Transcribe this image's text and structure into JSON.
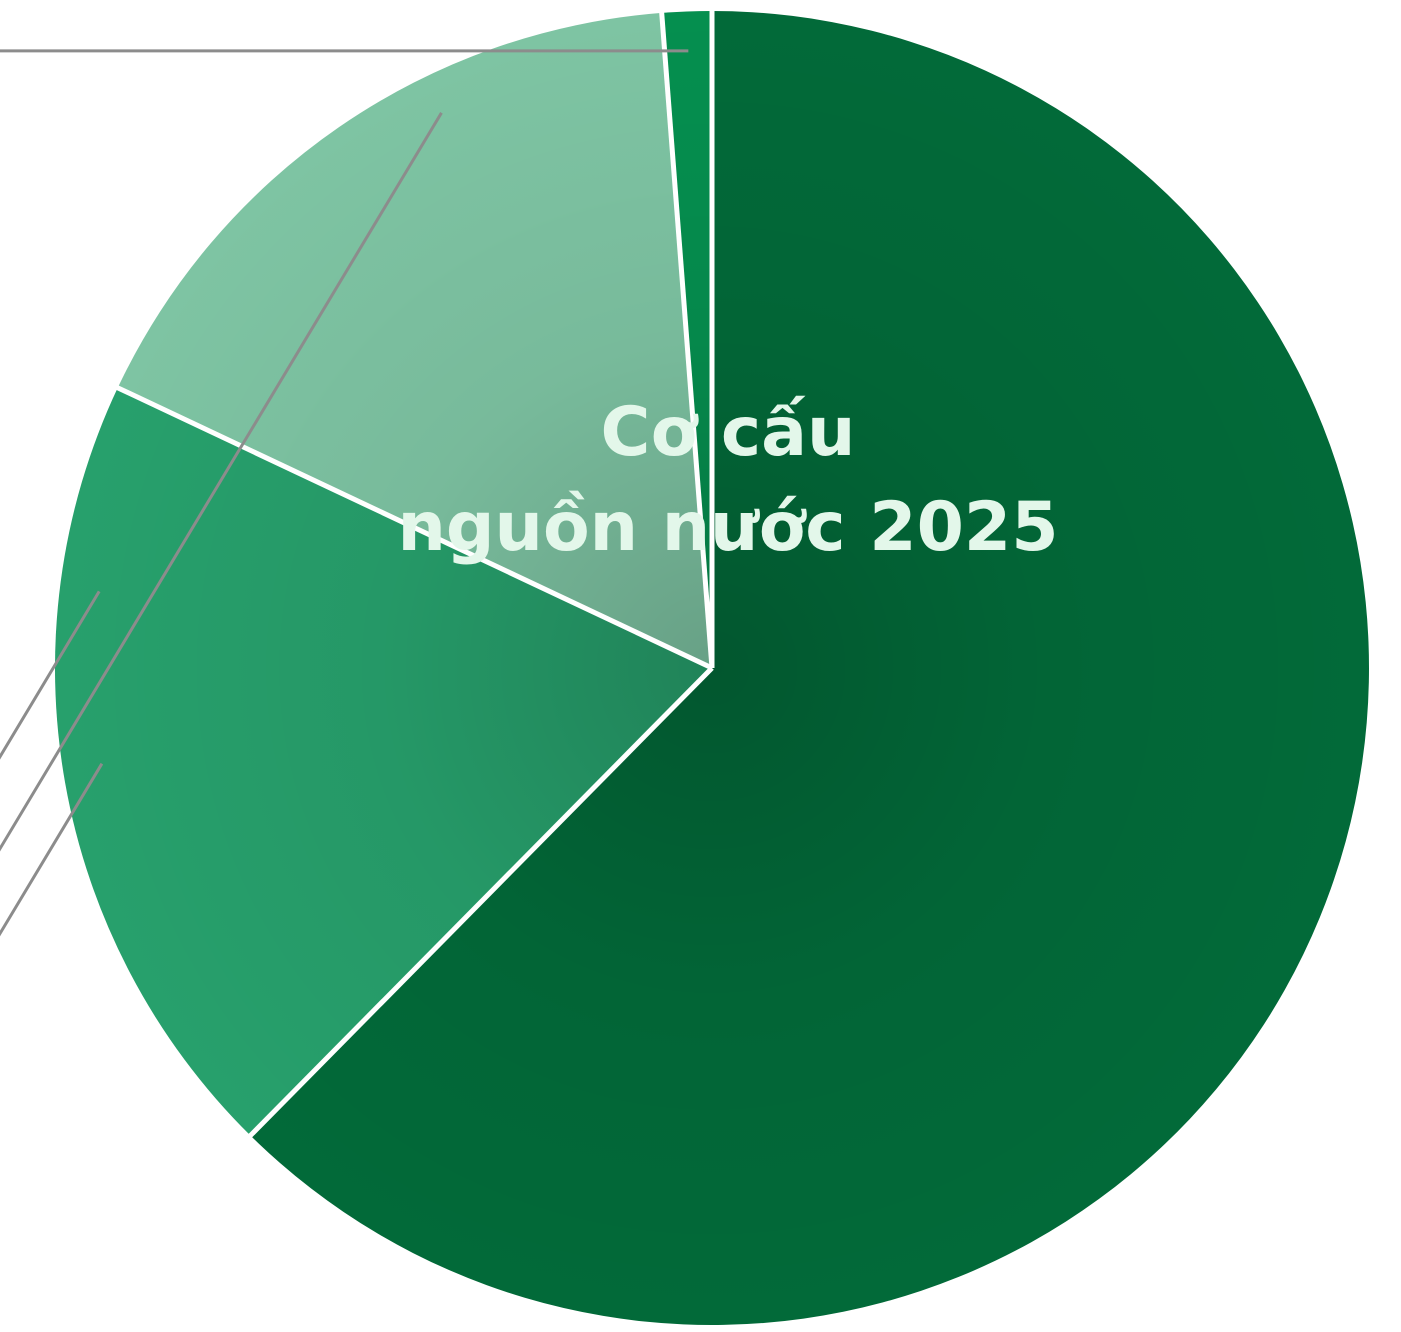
{
  "chart_data": {
    "type": "pie",
    "title_lines": [
      "Cơ cấu",
      "nguồn nước 2025"
    ],
    "slices": [
      {
        "value": 61.4,
        "color": "#026a39"
      },
      {
        "value": 19.3,
        "color": "#27a06c"
      },
      {
        "value": 16.5,
        "color": "#7ec4a3"
      },
      {
        "value": 1.2,
        "color": "#058f4f"
      }
    ],
    "legend": "none",
    "separator_color": "#ffffff",
    "leader_line_color": "#8c8c8c"
  }
}
